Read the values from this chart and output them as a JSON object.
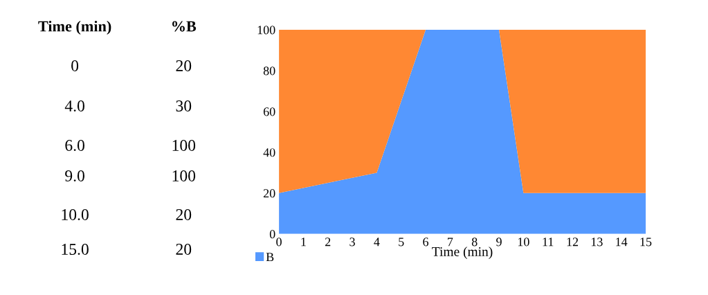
{
  "chart_data": [
    {
      "type": "other",
      "annotations": [
        "Time (min)",
        "%B",
        "0",
        "20",
        "4.0",
        "30",
        "6.0",
        "100",
        "9.0",
        "100",
        "10.0",
        "20",
        "15.0",
        "20"
      ]
    },
    {
      "type": "area",
      "stacked": true,
      "x": [
        0,
        4,
        6,
        9,
        10,
        15
      ],
      "series": [
        {
          "name": "B",
          "color": "#5599ff",
          "values": [
            20,
            30,
            100,
            100,
            20,
            20
          ]
        },
        {
          "color": "#ff8833",
          "values": [
            80,
            70,
            0,
            0,
            80,
            80
          ]
        }
      ],
      "xlabel": "Time (min)",
      "xlim": [
        0,
        15
      ],
      "xticks": [
        0,
        1,
        2,
        3,
        4,
        5,
        6,
        7,
        8,
        9,
        10,
        11,
        12,
        13,
        14,
        15
      ],
      "ylim": [
        0,
        100
      ],
      "yticks": [
        0,
        20,
        40,
        60,
        80,
        100
      ],
      "grid": false,
      "legend": "bottom left"
    }
  ]
}
